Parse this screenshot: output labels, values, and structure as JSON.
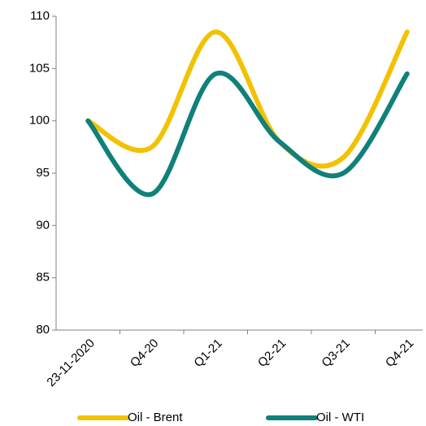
{
  "chart_data": {
    "type": "line",
    "categories": [
      "23-11-2020",
      "Q4-20",
      "Q1-21",
      "Q2-21",
      "Q3-21",
      "Q4-21"
    ],
    "series": [
      {
        "name": "Oil - Brent",
        "color": "#f2c200",
        "values": [
          100,
          97.5,
          108.5,
          98,
          96.5,
          108.5
        ]
      },
      {
        "name": "Oil - WTI",
        "color": "#10807a",
        "values": [
          100,
          93,
          104.5,
          98,
          95,
          104.5
        ]
      }
    ],
    "ylim": [
      80,
      110
    ],
    "yticks": [
      80,
      85,
      90,
      95,
      100,
      105,
      110
    ],
    "grid": false,
    "smooth": true,
    "legend": "bottom"
  }
}
